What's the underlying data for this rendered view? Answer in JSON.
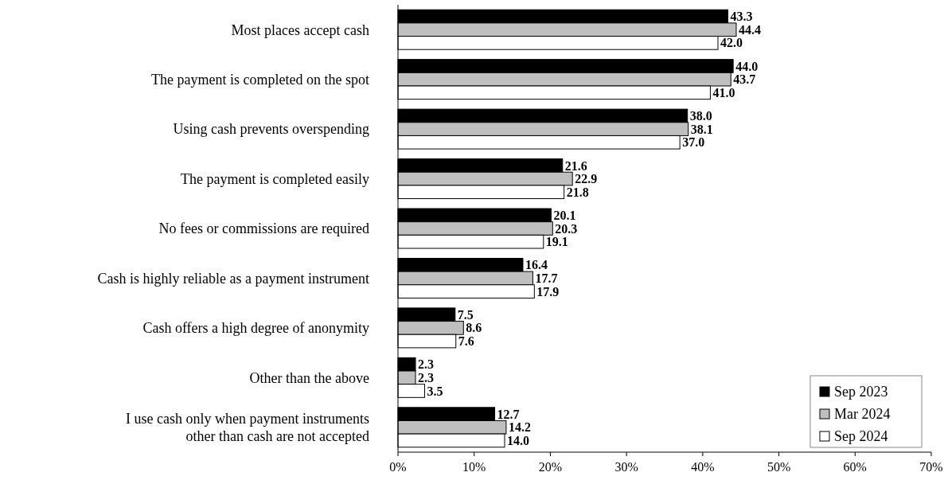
{
  "chart_data": {
    "type": "bar",
    "orientation": "horizontal",
    "categories": [
      "Most places accept cash",
      "The payment is completed on the spot",
      "Using cash prevents overspending",
      "The payment is completed easily",
      "No fees or commissions are required",
      "Cash is highly reliable as a payment instrument",
      "Cash offers a high degree of anonymity",
      "Other than the above",
      "I use cash only when payment instruments\nother than cash are not accepted"
    ],
    "series": [
      {
        "name": "Sep 2023",
        "color": "#000000",
        "values": [
          43.3,
          44.0,
          38.0,
          21.6,
          20.1,
          16.4,
          7.5,
          2.3,
          12.7
        ],
        "value_labels": [
          "43.3",
          "44.0",
          "38.0",
          "21.6",
          "20.1",
          "16.4",
          "7.5",
          "2.3",
          "12.7"
        ]
      },
      {
        "name": "Mar 2024",
        "color": "#bfbfbf",
        "values": [
          44.4,
          43.7,
          38.1,
          22.9,
          20.3,
          17.7,
          8.6,
          2.3,
          14.2
        ],
        "value_labels": [
          "44.4",
          "43.7",
          "38.1",
          "22.9",
          "20.3",
          "17.7",
          "8.6",
          "2.3",
          "14.2"
        ]
      },
      {
        "name": "Sep 2024",
        "color": "#ffffff",
        "values": [
          42.0,
          41.0,
          37.0,
          21.8,
          19.1,
          17.9,
          7.6,
          3.5,
          14.0
        ],
        "value_labels": [
          "42.0",
          "41.0",
          "37.0",
          "21.8",
          "19.1",
          "17.9",
          "7.6",
          "3.5",
          "14.0"
        ]
      }
    ],
    "xlim": [
      0,
      70
    ],
    "xticks": [
      {
        "value": 0,
        "label": "0%"
      },
      {
        "value": 10,
        "label": "10%"
      },
      {
        "value": 20,
        "label": "20%"
      },
      {
        "value": 30,
        "label": "30%"
      },
      {
        "value": 40,
        "label": "40%"
      },
      {
        "value": 50,
        "label": "50%"
      },
      {
        "value": 60,
        "label": "60%"
      },
      {
        "value": 70,
        "label": "70%"
      }
    ],
    "grid": false,
    "legend": "bottom right"
  }
}
